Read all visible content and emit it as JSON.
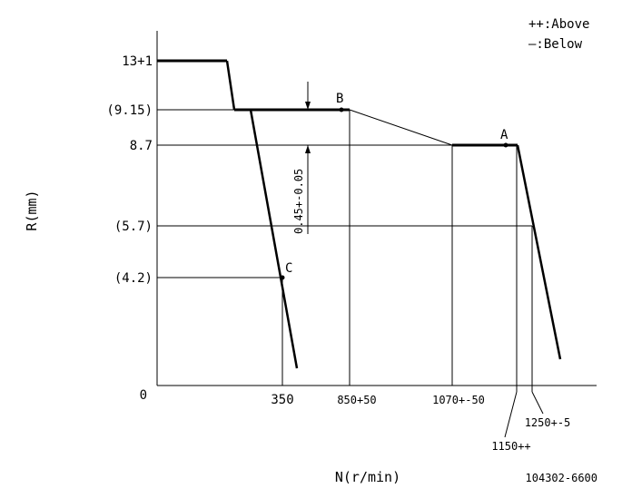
{
  "legend": {
    "above": "++:Above",
    "below": "—:Below"
  },
  "axes": {
    "y_title": "R(mm)",
    "x_title": "N(r/min)",
    "origin": "0"
  },
  "y_labels": {
    "r_13": "13+1",
    "r_915": "(9.15)",
    "r_87": "8.7",
    "r_57": "(5.7)",
    "r_42": "(4.2)"
  },
  "x_labels": {
    "n_350": "350",
    "n_850": "850+50",
    "n_1070": "1070+-50",
    "n_1250": "1250+-5",
    "n_1150": "1150++"
  },
  "points": {
    "a": "A",
    "b": "B",
    "c": "C"
  },
  "dimension": "0.45+-0.05",
  "drawing_number": "104302-6600"
}
